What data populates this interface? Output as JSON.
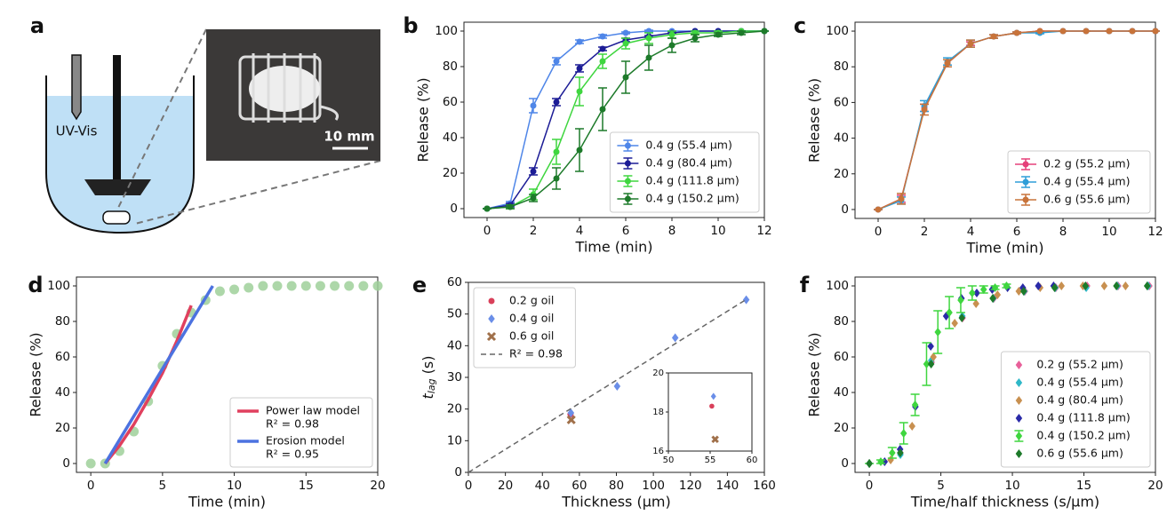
{
  "panel_a": {
    "label": "a",
    "probe_label": "UV-Vis",
    "scale_bar": "10 mm"
  },
  "chart_data": [
    {
      "panel": "b",
      "type": "line",
      "xlabel": "Time (min)",
      "ylabel": "Release (%)",
      "xlim": [
        -1,
        12
      ],
      "ylim": [
        -5,
        105
      ],
      "xticks": [
        0,
        2,
        4,
        6,
        8,
        10,
        12
      ],
      "yticks": [
        0,
        20,
        40,
        60,
        80,
        100
      ],
      "legend": "lower right",
      "x": [
        0,
        1,
        2,
        3,
        4,
        5,
        6,
        7,
        8,
        9,
        10,
        11,
        12
      ],
      "series": [
        {
          "name": "0.4 g (55.4 µm)",
          "color": "#4f86e8",
          "marker": "circle",
          "style": "line",
          "values": [
            0,
            3,
            58,
            83,
            94,
            97,
            99,
            100,
            100,
            100,
            100,
            100,
            100
          ],
          "errors": [
            0,
            1,
            4,
            2,
            1,
            1,
            0.5,
            0.5,
            0,
            0,
            0,
            0,
            0
          ]
        },
        {
          "name": "0.4 g (80.4 µm)",
          "color": "#1c1c96",
          "marker": "circle",
          "style": "line",
          "values": [
            0,
            2,
            21,
            60,
            79,
            90,
            95,
            97,
            99,
            100,
            100,
            100,
            100
          ],
          "errors": [
            0,
            1,
            2,
            2,
            2,
            1,
            1,
            0.5,
            0.5,
            0,
            0,
            0,
            0
          ]
        },
        {
          "name": "0.4 g (111.8 µm)",
          "color": "#3fd63f",
          "marker": "circle",
          "style": "line",
          "values": [
            0,
            1,
            8,
            32,
            66,
            83,
            93,
            96,
            98,
            99,
            99,
            100,
            100
          ],
          "errors": [
            0,
            1,
            3,
            7,
            8,
            4,
            3,
            3,
            2,
            1,
            1,
            0,
            0
          ]
        },
        {
          "name": "0.4 g (150.2 µm)",
          "color": "#1d7a2a",
          "marker": "circle",
          "style": "line",
          "values": [
            0,
            1,
            6,
            17,
            33,
            56,
            74,
            85,
            92,
            96,
            98,
            99,
            100
          ],
          "errors": [
            0,
            1,
            2,
            6,
            12,
            12,
            9,
            7,
            4,
            2,
            1,
            1,
            0
          ]
        }
      ]
    },
    {
      "panel": "c",
      "type": "line",
      "xlabel": "Time (min)",
      "ylabel": "Release (%)",
      "xlim": [
        -1,
        12
      ],
      "ylim": [
        -5,
        105
      ],
      "xticks": [
        0,
        2,
        4,
        6,
        8,
        10,
        12
      ],
      "yticks": [
        0,
        20,
        40,
        60,
        80,
        100
      ],
      "legend": "lower right",
      "x": [
        0,
        1,
        2,
        3,
        4,
        5,
        6,
        7,
        8,
        9,
        10,
        11,
        12
      ],
      "series": [
        {
          "name": "0.2 g (55.2 µm)",
          "color": "#e5407a",
          "marker": "circle",
          "style": "line",
          "values": [
            0,
            6,
            57,
            82,
            93,
            97,
            99,
            100,
            100,
            100,
            100,
            100,
            100
          ],
          "errors": [
            0,
            2,
            2,
            2,
            1,
            1,
            0.5,
            0,
            0,
            0,
            0,
            0,
            0
          ]
        },
        {
          "name": "0.4 g (55.4 µm)",
          "color": "#2f9ed8",
          "marker": "circle",
          "style": "line",
          "values": [
            0,
            5,
            58,
            83,
            93,
            97,
            99,
            99,
            100,
            100,
            100,
            100,
            100
          ],
          "errors": [
            0,
            2,
            3,
            2,
            2,
            1,
            0.5,
            0.5,
            0,
            0,
            0,
            0,
            0
          ]
        },
        {
          "name": "0.6 g (55.6 µm)",
          "color": "#c8733a",
          "marker": "circle",
          "style": "line",
          "values": [
            0,
            6,
            56,
            82,
            93,
            97,
            99,
            100,
            100,
            100,
            100,
            100,
            100
          ],
          "errors": [
            0,
            3,
            3,
            2,
            2,
            1,
            0.5,
            0,
            0,
            0,
            0,
            0,
            0
          ]
        }
      ]
    },
    {
      "panel": "d",
      "type": "line",
      "xlabel": "Time (min)",
      "ylabel": "Release (%)",
      "xlim": [
        -1,
        20
      ],
      "ylim": [
        -5,
        105
      ],
      "xticks": [
        0,
        5,
        10,
        15,
        20
      ],
      "yticks": [
        0,
        20,
        40,
        60,
        80,
        100
      ],
      "legend": "lower right",
      "series": [
        {
          "color": "#9fd09a",
          "marker": "bigcircle",
          "style": "markers",
          "x": [
            0,
            1,
            2,
            3,
            4,
            5,
            6,
            7,
            8,
            9,
            10,
            11,
            12,
            13,
            14,
            15,
            16,
            17,
            18,
            19,
            20
          ],
          "values": [
            0,
            0,
            7,
            18,
            35,
            55,
            73,
            85,
            92,
            97,
            98,
            99,
            100,
            100,
            100,
            100,
            100,
            100,
            100,
            100,
            100
          ]
        },
        {
          "name": "Power law model",
          "note": "R² = 0.98",
          "color": "#e0405e",
          "style": "thick",
          "x": [
            1,
            2,
            3,
            4,
            5,
            6,
            7
          ],
          "values": [
            0,
            10,
            22,
            36,
            51,
            69,
            89
          ]
        },
        {
          "name": "Erosion model",
          "note": "R² = 0.95",
          "color": "#4c72e0",
          "style": "thick",
          "x": [
            1,
            8.5
          ],
          "values": [
            0,
            100
          ]
        }
      ]
    },
    {
      "panel": "e",
      "type": "scatter",
      "xlabel": "Thickness (µm)",
      "ylabel_parts": [
        "t",
        "lag",
        " (s)"
      ],
      "xlim": [
        0,
        160
      ],
      "ylim": [
        0,
        60
      ],
      "xticks": [
        0,
        20,
        40,
        60,
        80,
        100,
        120,
        140,
        160
      ],
      "yticks": [
        0,
        10,
        20,
        30,
        40,
        50,
        60
      ],
      "legend": "upper left",
      "series": [
        {
          "name": "0.2 g oil",
          "color": "#d9405a",
          "marker": "circle",
          "style": "markers",
          "x": [
            55.2
          ],
          "values": [
            18.3
          ]
        },
        {
          "name": "0.4 g oil",
          "color": "#6a8ee8",
          "marker": "diamond",
          "style": "markers",
          "x": [
            55.4,
            80.4,
            111.8,
            150.2
          ],
          "values": [
            18.8,
            27.2,
            42.5,
            54.5
          ]
        },
        {
          "name": "0.6 g oil",
          "color": "#a0704a",
          "marker": "x",
          "style": "markers",
          "x": [
            55.6
          ],
          "values": [
            16.6
          ]
        },
        {
          "name": "R² = 0.98",
          "color": "#666666",
          "style": "dashed",
          "x": [
            0,
            150.2
          ],
          "values": [
            0,
            54.6
          ]
        }
      ],
      "inset": {
        "xlim": [
          50,
          60
        ],
        "ylim": [
          16,
          20
        ],
        "xticks": [
          50,
          55,
          60
        ],
        "yticks": [
          16,
          18,
          20
        ]
      }
    },
    {
      "panel": "f",
      "type": "scatter",
      "xlabel": "Time/half thickness (s/µm)",
      "ylabel": "Release (%)",
      "xlim": [
        -1,
        20
      ],
      "ylim": [
        -5,
        105
      ],
      "xticks": [
        0,
        5,
        10,
        15,
        20
      ],
      "yticks": [
        0,
        20,
        40,
        60,
        80,
        100
      ],
      "legend": "lower right",
      "series": [
        {
          "name": "0.2 g (55.2 µm)",
          "color": "#e8609a",
          "marker": "diamond",
          "style": "markers",
          "x": [
            0,
            2.17,
            4.35,
            6.52,
            8.7,
            10.87,
            13.04,
            15.22,
            17.39,
            19.57
          ],
          "values": [
            0,
            6,
            57,
            82,
            93,
            97,
            99,
            100,
            100,
            100
          ]
        },
        {
          "name": "0.4 g (55.4 µm)",
          "color": "#2fb8c8",
          "marker": "diamond",
          "style": "markers",
          "x": [
            0,
            2.17,
            4.33,
            6.5,
            8.66,
            10.83,
            13,
            15.16,
            17.33,
            19.49
          ],
          "values": [
            0,
            5,
            58,
            83,
            93,
            97,
            99,
            99,
            100,
            100
          ]
        },
        {
          "name": "0.4 g (80.4 µm)",
          "color": "#c89050",
          "marker": "diamond",
          "style": "markers",
          "x": [
            0,
            1.49,
            2.99,
            4.48,
            5.97,
            7.46,
            8.96,
            10.45,
            11.94,
            13.43,
            14.93,
            16.42,
            17.91
          ],
          "values": [
            0,
            2,
            21,
            60,
            79,
            90,
            95,
            97,
            99,
            100,
            100,
            100,
            100
          ]
        },
        {
          "name": "0.4 g (111.8 µm)",
          "color": "#2a2aa8",
          "marker": "diamond",
          "style": "markers",
          "x": [
            0,
            1.07,
            2.15,
            3.22,
            4.29,
            5.37,
            6.44,
            7.51,
            8.59,
            9.66,
            10.73,
            11.81,
            12.88
          ],
          "values": [
            0,
            1,
            8,
            32,
            66,
            83,
            93,
            96,
            98,
            99,
            99,
            100,
            100
          ]
        },
        {
          "name": "0.4 g (150.2 µm)",
          "color": "#3fd63f",
          "marker": "diamond",
          "style": "markers",
          "x": [
            0,
            0.8,
            1.6,
            2.4,
            3.2,
            4,
            4.79,
            5.59,
            6.39,
            7.19,
            7.99,
            8.79,
            9.59
          ],
          "values": [
            0,
            1,
            6,
            17,
            33,
            56,
            74,
            85,
            92,
            96,
            98,
            99,
            100
          ],
          "errors": [
            0,
            1,
            3,
            6,
            6,
            12,
            12,
            9,
            7,
            4,
            2,
            1,
            1
          ]
        },
        {
          "name": "0.6 g (55.6 µm)",
          "color": "#1d7a2a",
          "marker": "diamond",
          "style": "markers",
          "x": [
            0,
            2.16,
            4.32,
            6.47,
            8.63,
            10.79,
            12.95,
            15.11,
            17.27,
            19.42
          ],
          "values": [
            0,
            6,
            56,
            82,
            93,
            97,
            99,
            100,
            100,
            100
          ]
        }
      ]
    }
  ]
}
